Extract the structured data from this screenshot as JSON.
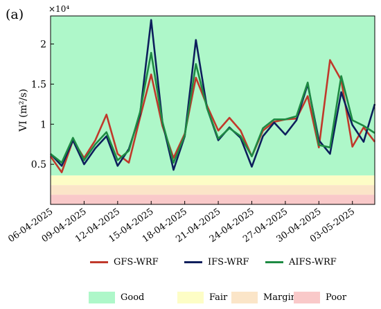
{
  "panel_label": "(a)",
  "chart_data": {
    "type": "line",
    "ylabel": "VI (m²/s)",
    "yexponent": "×10⁴",
    "ylim": [
      0,
      23500
    ],
    "yticks": [
      5000,
      10000,
      15000,
      20000
    ],
    "ytick_labels": [
      "0.5",
      "1",
      "1.5",
      "2"
    ],
    "grid": false,
    "x": [
      "06-04-2025",
      "07-04-2025",
      "08-04-2025",
      "09-04-2025",
      "10-04-2025",
      "11-04-2025",
      "12-04-2025",
      "13-04-2025",
      "14-04-2025",
      "15-04-2025",
      "16-04-2025",
      "17-04-2025",
      "18-04-2025",
      "19-04-2025",
      "20-04-2025",
      "21-04-2025",
      "22-04-2025",
      "23-04-2025",
      "24-04-2025",
      "25-04-2025",
      "26-04-2025",
      "27-04-2025",
      "28-04-2025",
      "29-04-2025",
      "30-04-2025",
      "01-05-2025",
      "02-05-2025",
      "03-05-2025",
      "04-05-2025",
      "05-05-2025"
    ],
    "xtick_labels": [
      "06-04-2025",
      "09-04-2025",
      "12-04-2025",
      "15-04-2025",
      "18-04-2025",
      "21-04-2025",
      "24-04-2025",
      "27-04-2025",
      "30-04-2025",
      "03-05-2025"
    ],
    "xtick_index": [
      0,
      3,
      6,
      9,
      12,
      15,
      18,
      21,
      24,
      27
    ],
    "series": [
      {
        "name": "GFS-WRF",
        "color": "#c0392b",
        "values": [
          6000,
          4000,
          8000,
          5800,
          8000,
          11200,
          6300,
          5200,
          10800,
          16200,
          9800,
          5800,
          8800,
          15800,
          12300,
          9200,
          10800,
          9200,
          6000,
          9200,
          10300,
          10600,
          10700,
          13500,
          7100,
          18000,
          15500,
          7200,
          9600,
          7800
        ]
      },
      {
        "name": "IFS-WRF",
        "color": "#0d1f5c",
        "values": [
          6300,
          4800,
          8000,
          5000,
          7000,
          8500,
          4800,
          6900,
          11200,
          23000,
          10300,
          4300,
          8500,
          20500,
          12000,
          8000,
          9600,
          8300,
          4700,
          8500,
          10200,
          8700,
          10500,
          15000,
          8000,
          6300,
          14000,
          9900,
          7800,
          12500
        ]
      },
      {
        "name": "AIFS-WRF",
        "color": "#1e8a43",
        "values": [
          6300,
          5200,
          8300,
          5500,
          7500,
          9000,
          5500,
          6700,
          11500,
          18900,
          10300,
          5200,
          8600,
          17500,
          12000,
          8200,
          9500,
          8500,
          6000,
          9500,
          10600,
          10600,
          11000,
          15200,
          7400,
          7100,
          16000,
          10500,
          9800,
          8900
        ]
      }
    ],
    "bands": [
      {
        "name": "Good",
        "from": 3600,
        "to": 23500,
        "color": "#aef7c9"
      },
      {
        "name": "Fair",
        "from": 2400,
        "to": 3600,
        "color": "#fdfdc6"
      },
      {
        "name": "Marginal",
        "from": 1200,
        "to": 2400,
        "color": "#fbe5c8"
      },
      {
        "name": "Poor",
        "from": 0,
        "to": 1200,
        "color": "#f9c9c9"
      }
    ]
  }
}
